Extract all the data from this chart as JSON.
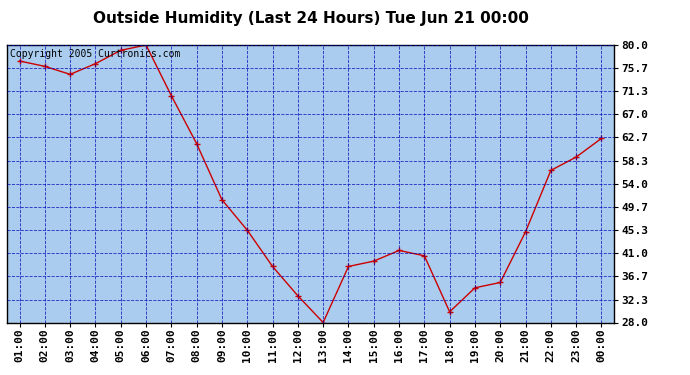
{
  "title": "Outside Humidity (Last 24 Hours) Tue Jun 21 00:00",
  "copyright": "Copyright 2005 Curtronics.com",
  "x_labels": [
    "01:00",
    "02:00",
    "03:00",
    "04:00",
    "05:00",
    "06:00",
    "07:00",
    "08:00",
    "09:00",
    "10:00",
    "11:00",
    "12:00",
    "13:00",
    "14:00",
    "15:00",
    "16:00",
    "17:00",
    "18:00",
    "19:00",
    "20:00",
    "21:00",
    "22:00",
    "23:00",
    "00:00"
  ],
  "x_values": [
    1,
    2,
    3,
    4,
    5,
    6,
    7,
    8,
    9,
    10,
    11,
    12,
    13,
    14,
    15,
    16,
    17,
    18,
    19,
    20,
    21,
    22,
    23,
    24
  ],
  "y_values": [
    77.0,
    76.0,
    74.5,
    76.5,
    79.0,
    80.0,
    70.5,
    61.5,
    51.0,
    45.3,
    38.5,
    33.0,
    28.0,
    38.5,
    39.5,
    41.5,
    40.5,
    30.0,
    34.5,
    35.5,
    45.0,
    56.5,
    59.0,
    62.5
  ],
  "y_ticks": [
    28.0,
    32.3,
    36.7,
    41.0,
    45.3,
    49.7,
    54.0,
    58.3,
    62.7,
    67.0,
    71.3,
    75.7,
    80.0
  ],
  "y_min": 28.0,
  "y_max": 80.0,
  "line_color": "#cc0000",
  "marker_color": "#cc0000",
  "bg_color": "#aaccee",
  "grid_color": "#0000bb",
  "title_fontsize": 11,
  "copyright_fontsize": 7,
  "tick_fontsize": 8,
  "ytick_fontsize": 8
}
